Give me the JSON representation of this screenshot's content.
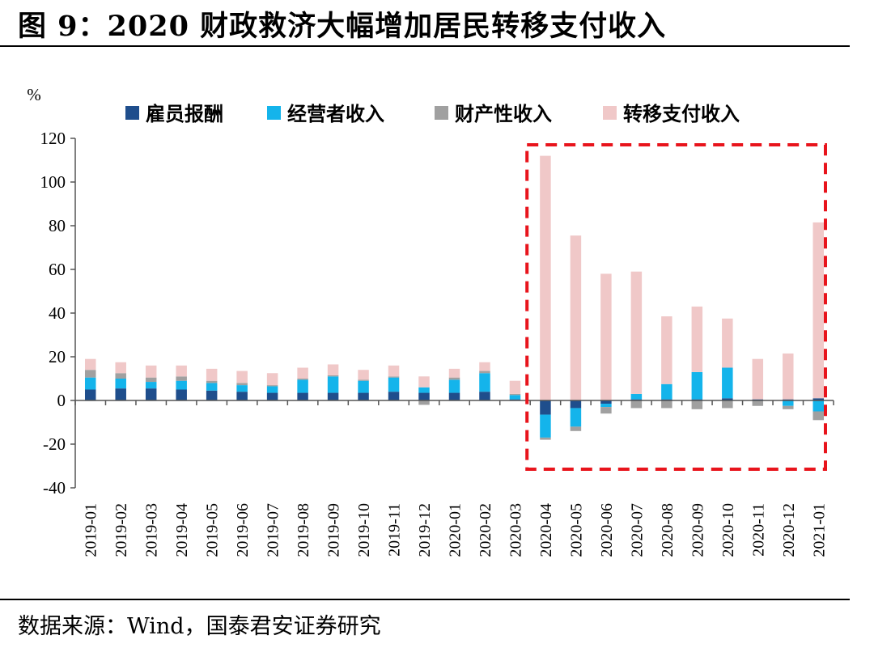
{
  "figure": {
    "title": "图 9：2020 财政救济大幅增加居民转移支付收入",
    "source": "数据来源：Wind，国泰君安证券研究"
  },
  "chart_data": {
    "type": "bar",
    "stacked": true,
    "unit": "%",
    "categories": [
      "2019-01",
      "2019-02",
      "2019-03",
      "2019-04",
      "2019-05",
      "2019-06",
      "2019-07",
      "2019-08",
      "2019-09",
      "2019-10",
      "2019-11",
      "2019-12",
      "2020-01",
      "2020-02",
      "2020-03",
      "2020-04",
      "2020-05",
      "2020-06",
      "2020-07",
      "2020-08",
      "2020-09",
      "2020-10",
      "2020-11",
      "2020-12",
      "2021-01"
    ],
    "ylim": [
      -40,
      120
    ],
    "yticks": [
      -40,
      -20,
      0,
      20,
      40,
      60,
      80,
      100,
      120
    ],
    "legend_position": "top",
    "series": [
      {
        "name": "雇员报酬",
        "color": "#1f4e8c",
        "values": [
          5,
          5.5,
          5.5,
          5,
          4.5,
          4,
          3.5,
          3.5,
          3.5,
          3.5,
          4,
          3.5,
          3.5,
          4,
          0.5,
          -6.5,
          -3.5,
          -1.5,
          0.5,
          0.5,
          0.5,
          1,
          0.5,
          0.5,
          1
        ]
      },
      {
        "name": "经营者收入",
        "color": "#14b4eb",
        "values": [
          5.5,
          4.5,
          3,
          4,
          3.5,
          3,
          3,
          6,
          7.5,
          5.5,
          6.5,
          2.5,
          6,
          8.5,
          2,
          -10.5,
          -8.5,
          -1.5,
          2.5,
          7,
          12.5,
          14,
          0,
          -2.5,
          -5
        ]
      },
      {
        "name": "财产性收入",
        "color": "#a0a0a0",
        "values": [
          3.5,
          2.5,
          2,
          2,
          1,
          1,
          0.5,
          0.5,
          0.5,
          0.5,
          0.5,
          -2,
          1,
          1,
          0.5,
          -1,
          -2,
          -3,
          -3.5,
          -3.5,
          -4,
          -3.5,
          -2.5,
          -1.5,
          -4
        ]
      },
      {
        "name": "转移支付收入",
        "color": "#f0c8c8",
        "values": [
          5,
          5,
          5.5,
          5,
          5.5,
          5.5,
          5.5,
          5,
          5,
          4.5,
          5,
          5,
          4,
          4,
          6,
          112,
          75.5,
          58,
          56,
          31,
          30,
          22.5,
          18.5,
          21,
          80.5
        ]
      }
    ],
    "highlight": {
      "from": "2020-04",
      "to": "2021-01",
      "style": "red-dashed-box"
    }
  }
}
